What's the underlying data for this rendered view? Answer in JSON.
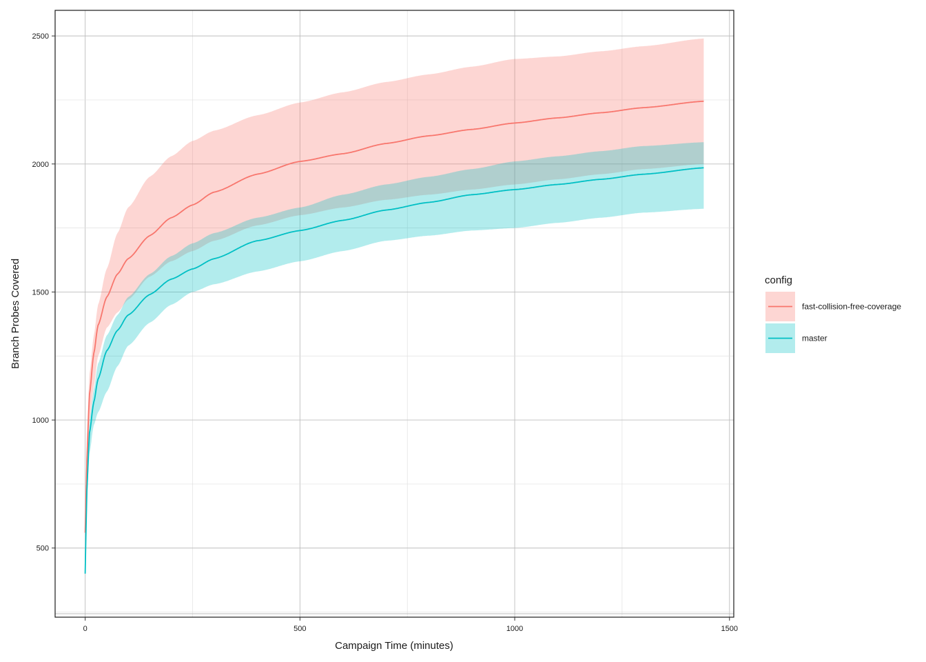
{
  "chart_data": {
    "type": "line",
    "title": "",
    "xlabel": "Campaign Time (minutes)",
    "ylabel": "Branch Probes Covered",
    "xlim": [
      -70,
      1510
    ],
    "ylim": [
      230,
      2600
    ],
    "x_ticks": [
      0,
      500,
      1000,
      1500
    ],
    "y_ticks": [
      500,
      1000,
      1500,
      2000,
      2500
    ],
    "grid": true,
    "legend": {
      "title": "config",
      "position": "right"
    },
    "series": [
      {
        "name": "fast-collision-free-coverage",
        "color": "#F8766D",
        "ribbon_color": "#F8766D",
        "x": [
          0,
          2,
          5,
          10,
          20,
          30,
          50,
          75,
          100,
          150,
          200,
          250,
          300,
          400,
          500,
          600,
          700,
          800,
          900,
          1000,
          1100,
          1200,
          1300,
          1440
        ],
        "y": [
          560,
          700,
          900,
          1100,
          1260,
          1370,
          1480,
          1570,
          1630,
          1720,
          1790,
          1840,
          1890,
          1960,
          2010,
          2040,
          2080,
          2110,
          2135,
          2160,
          2180,
          2200,
          2220,
          2245
        ],
        "lower": [
          450,
          600,
          800,
          1000,
          1130,
          1250,
          1360,
          1420,
          1470,
          1560,
          1620,
          1660,
          1700,
          1760,
          1800,
          1830,
          1860,
          1880,
          1900,
          1920,
          1940,
          1960,
          1980,
          2000
        ],
        "upper": [
          650,
          800,
          1000,
          1180,
          1330,
          1450,
          1590,
          1730,
          1830,
          1950,
          2030,
          2090,
          2130,
          2190,
          2240,
          2280,
          2320,
          2350,
          2380,
          2410,
          2420,
          2440,
          2460,
          2490
        ]
      },
      {
        "name": "master",
        "color": "#00BFC4",
        "ribbon_color": "#00BFC4",
        "x": [
          0,
          2,
          5,
          10,
          20,
          30,
          50,
          75,
          100,
          150,
          200,
          250,
          300,
          400,
          500,
          600,
          700,
          800,
          900,
          1000,
          1100,
          1200,
          1300,
          1440
        ],
        "y": [
          400,
          580,
          780,
          950,
          1070,
          1160,
          1270,
          1350,
          1410,
          1490,
          1550,
          1590,
          1630,
          1700,
          1740,
          1780,
          1820,
          1850,
          1880,
          1900,
          1920,
          1940,
          1960,
          1985
        ],
        "lower": [
          380,
          540,
          730,
          870,
          980,
          1030,
          1110,
          1210,
          1290,
          1380,
          1450,
          1500,
          1530,
          1580,
          1620,
          1660,
          1700,
          1720,
          1740,
          1750,
          1770,
          1790,
          1810,
          1825
        ],
        "upper": [
          430,
          620,
          830,
          1000,
          1120,
          1220,
          1330,
          1410,
          1480,
          1570,
          1640,
          1690,
          1730,
          1790,
          1830,
          1880,
          1920,
          1950,
          1980,
          2010,
          2030,
          2050,
          2070,
          2085
        ]
      }
    ]
  }
}
